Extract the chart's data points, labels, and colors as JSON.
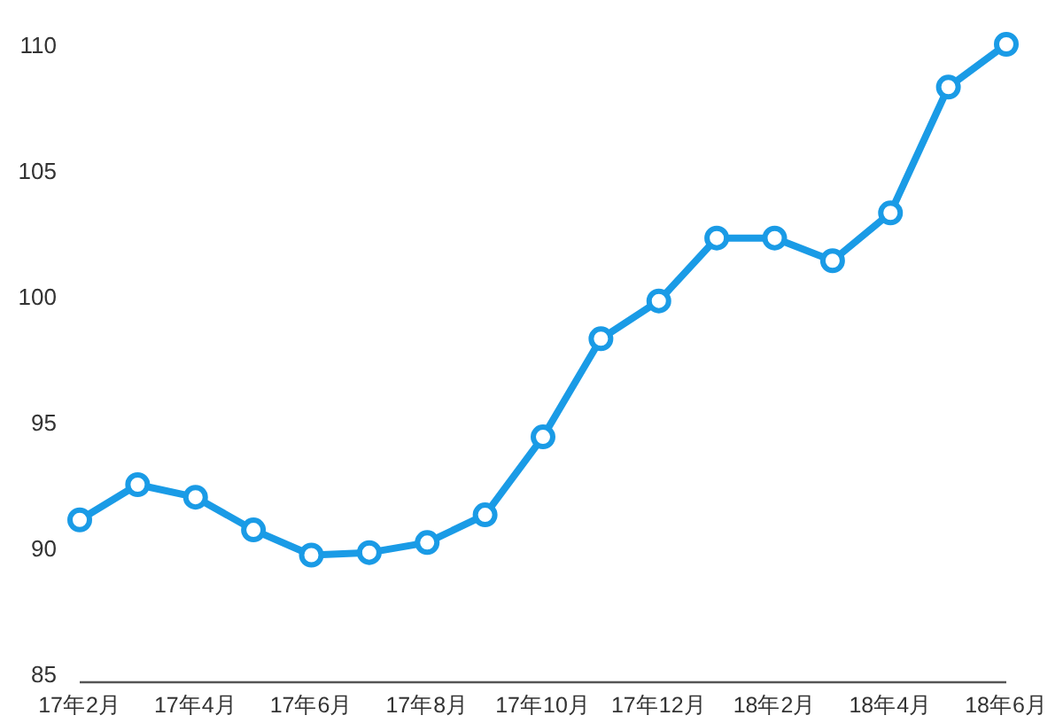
{
  "chart_data": {
    "type": "line",
    "categories": [
      "17年2月",
      null,
      "17年4月",
      null,
      "17年6月",
      null,
      "17年8月",
      null,
      "17年10月",
      null,
      "17年12月",
      null,
      "18年2月",
      null,
      "18年4月",
      null,
      "18年6月"
    ],
    "series": [
      {
        "color": "#1a9be6",
        "values": [
          91.1,
          92.5,
          92.0,
          90.7,
          89.7,
          89.8,
          90.2,
          91.3,
          94.4,
          98.3,
          99.8,
          102.3,
          102.3,
          101.4,
          103.3,
          108.3,
          110.0
        ]
      }
    ],
    "ylim": [
      85,
      110
    ],
    "yticks": [
      85,
      90,
      95,
      100,
      105,
      110
    ],
    "marker": "circle",
    "line_style": "solid"
  }
}
